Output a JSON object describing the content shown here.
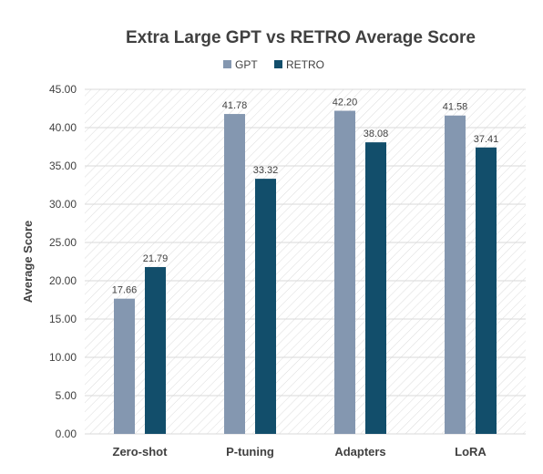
{
  "chart_data": {
    "type": "bar",
    "title": "Extra Large GPT vs RETRO Average Score",
    "xlabel": "",
    "ylabel": "Average Score",
    "categories": [
      "Zero-shot",
      "P-tuning",
      "Adapters",
      "LoRA"
    ],
    "series": [
      {
        "name": "GPT",
        "values": [
          17.66,
          41.78,
          42.2,
          41.58
        ],
        "labels": [
          "17.66",
          "41.78",
          "42.20",
          "41.58"
        ],
        "color": "#8497B0"
      },
      {
        "name": "RETRO",
        "values": [
          21.79,
          33.32,
          38.08,
          37.41
        ],
        "labels": [
          "21.79",
          "33.32",
          "38.08",
          "37.41"
        ],
        "color": "#124E6B"
      }
    ],
    "ylim": [
      0,
      45
    ],
    "yticks": [
      0,
      5,
      10,
      15,
      20,
      25,
      30,
      35,
      40,
      45
    ],
    "ytick_labels": [
      "0.00",
      "5.00",
      "10.00",
      "15.00",
      "20.00",
      "25.00",
      "30.00",
      "35.00",
      "40.00",
      "45.00"
    ],
    "grid": true,
    "plot_background": "hatched",
    "legend_position": "top-center",
    "colors": {
      "gpt": "#8497B0",
      "retro": "#124E6B",
      "grid": "#d9d9d9",
      "hatch": "#d9d9d9",
      "text": "#404040",
      "title": "#404040"
    }
  }
}
